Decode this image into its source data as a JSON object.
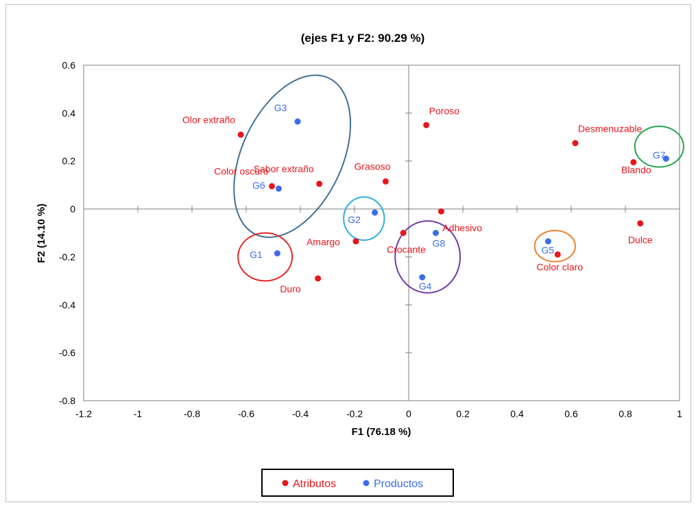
{
  "chart_data": {
    "type": "scatter",
    "title": "(ejes F1 y F2: 90.29 %)",
    "xlabel": "F1 (76.18 %)",
    "ylabel": "F2 (14.10 %)",
    "xlim": [
      -1.2,
      1
    ],
    "ylim": [
      -0.8,
      0.6
    ],
    "xticks": [
      "-1.2",
      "-1",
      "-0.8",
      "-0.6",
      "-0.4",
      "-0.2",
      "0",
      "0.2",
      "0.4",
      "0.6",
      "0.8",
      "1"
    ],
    "yticks": [
      "-0.8",
      "-0.6",
      "-0.4",
      "-0.2",
      "0",
      "0.2",
      "0.4",
      "0.6"
    ],
    "legend_position": "bottom",
    "series": [
      {
        "name": "Atributos",
        "color": "#e8151b",
        "points": [
          {
            "label": "Olor extraño",
            "x": -0.62,
            "y": 0.31
          },
          {
            "label": "Sabor extraño",
            "x": -0.33,
            "y": 0.105
          },
          {
            "label": "Color oscuro",
            "x": -0.505,
            "y": 0.095
          },
          {
            "label": "Grasoso",
            "x": -0.085,
            "y": 0.115
          },
          {
            "label": "Poroso",
            "x": 0.065,
            "y": 0.35
          },
          {
            "label": "Desmenuzable",
            "x": 0.615,
            "y": 0.275
          },
          {
            "label": "Blando",
            "x": 0.83,
            "y": 0.195
          },
          {
            "label": "Adhesivo",
            "x": 0.12,
            "y": -0.01
          },
          {
            "label": "Amargo",
            "x": -0.195,
            "y": -0.135
          },
          {
            "label": "Crocante",
            "x": -0.02,
            "y": -0.1
          },
          {
            "label": "Duro",
            "x": -0.335,
            "y": -0.29
          },
          {
            "label": "Color claro",
            "x": 0.55,
            "y": -0.19
          },
          {
            "label": "Dulce",
            "x": 0.855,
            "y": -0.06
          }
        ]
      },
      {
        "name": "Productos",
        "color": "#3b6de8",
        "points": [
          {
            "label": "G3",
            "x": -0.41,
            "y": 0.365
          },
          {
            "label": "G6",
            "x": -0.48,
            "y": 0.085
          },
          {
            "label": "G2",
            "x": -0.125,
            "y": -0.015
          },
          {
            "label": "G1",
            "x": -0.485,
            "y": -0.185
          },
          {
            "label": "G8",
            "x": 0.1,
            "y": -0.1
          },
          {
            "label": "G4",
            "x": 0.05,
            "y": -0.285
          },
          {
            "label": "G5",
            "x": 0.515,
            "y": -0.135
          },
          {
            "label": "G7",
            "x": 0.95,
            "y": 0.21
          }
        ]
      }
    ],
    "groups": [
      {
        "color": "#3f6f97"
      },
      {
        "color": "#29aee2"
      },
      {
        "color": "#e32525"
      },
      {
        "color": "#6f3aa5"
      },
      {
        "color": "#e8822d"
      },
      {
        "color": "#24a54e"
      }
    ]
  }
}
